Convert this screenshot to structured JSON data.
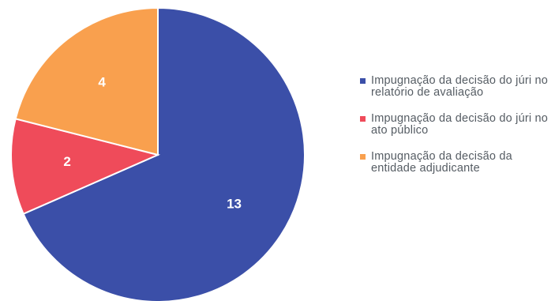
{
  "chart_data": {
    "type": "pie",
    "title": "",
    "legend_position": "right",
    "slices": [
      {
        "label": "Impugnação da decisão do júri no relatório de avaliação",
        "value": 13,
        "color": "#3b4fa8"
      },
      {
        "label": "Impugnação da decisão do júri no ato público",
        "value": 2,
        "color": "#ef4b5a"
      },
      {
        "label": "Impugnação da decisão da entidade adjudicante",
        "value": 4,
        "color": "#f9a04e"
      }
    ]
  }
}
